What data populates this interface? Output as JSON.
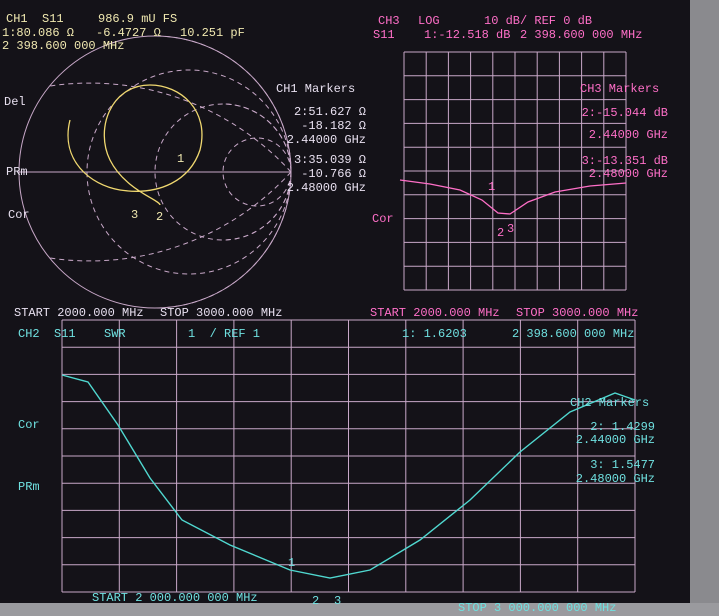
{
  "ch1": {
    "header": {
      "channel": "CH1",
      "param": "S11",
      "scale": "986.9 mU FS",
      "marker": "1:80.086 Ω",
      "reactance": "-6.4727 Ω",
      "capacitance": "10.251 pF",
      "frequency": "2 398.600 000 MHz"
    },
    "labels": [
      "Del",
      "PRm",
      "Cor"
    ],
    "markers": {
      "title": "CH1 Markers",
      "m2": [
        "2:51.627 Ω",
        "-18.182 Ω",
        "2.44000 GHz"
      ],
      "m3": [
        "3:35.039 Ω",
        "-10.766 Ω",
        "2.48000 GHz"
      ]
    },
    "trace_markers": [
      "1",
      "2",
      "3"
    ],
    "start": "START 2000.000 MHz",
    "stop": "STOP 3000.000 MHz"
  },
  "ch3": {
    "header": {
      "channel": "CH3",
      "format": "LOG",
      "scale": "10 dB/ REF 0 dB",
      "param": "S11",
      "marker": "1:-12.518 dB",
      "frequency": "2 398.600 000 MHz"
    },
    "label": "Cor",
    "markers": {
      "title": "CH3 Markers",
      "m2": [
        "2:-15.044 dB",
        "2.44000 GHz"
      ],
      "m3": [
        "3:-13.351 dB",
        "2.48000 GHz"
      ]
    },
    "trace_markers": [
      "1",
      "2",
      "3"
    ],
    "start": "START 2000.000 MHz",
    "stop": "STOP 3000.000 MHz"
  },
  "ch2": {
    "header": {
      "channel": "CH2",
      "param": "S11",
      "format": "SWR",
      "scale": "1  / REF 1",
      "marker": "1: 1.6203",
      "frequency": "2 398.600 000 MHz"
    },
    "labels": [
      "Cor",
      "PRm"
    ],
    "markers": {
      "title": "CH2 Markers",
      "m2": [
        "2: 1.4299",
        "2.44000 GHz"
      ],
      "m3": [
        "3: 1.5477",
        "2.48000 GHz"
      ]
    },
    "trace_markers": [
      "1",
      "2",
      "3"
    ],
    "start": "START 2 000.000 000 MHz",
    "stop": "STOP 3 000.000 000 MHz"
  }
}
